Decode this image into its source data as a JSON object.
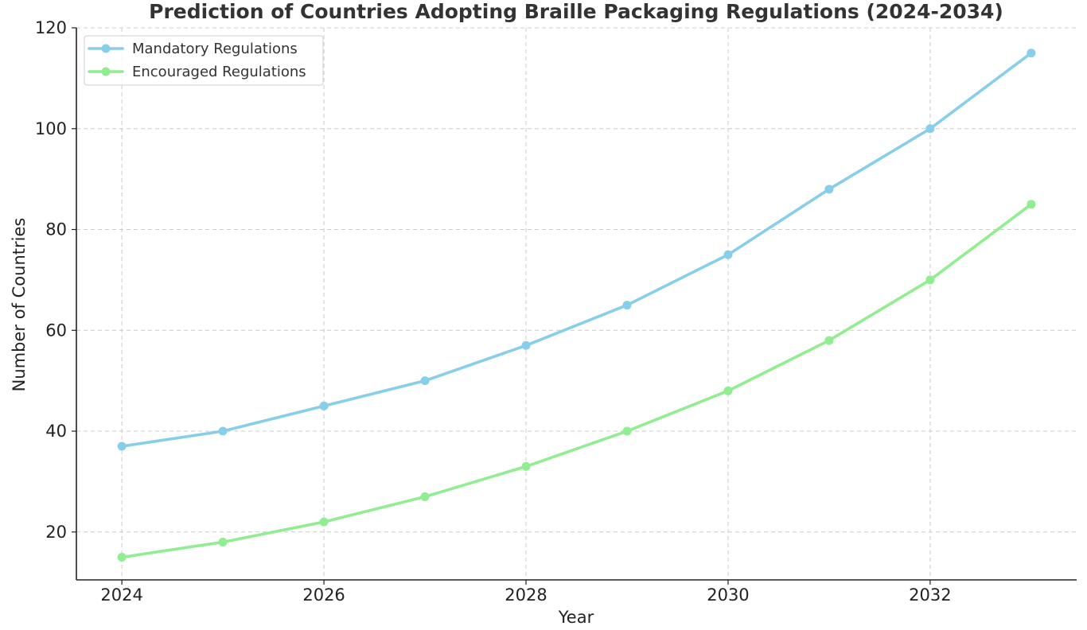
{
  "chart_data": {
    "type": "line",
    "title": "Prediction of Countries Adopting Braille Packaging Regulations (2024-2034)",
    "xlabel": "Year",
    "ylabel": "Number of Countries",
    "x": [
      2024,
      2025,
      2026,
      2027,
      2028,
      2029,
      2030,
      2031,
      2032,
      2033
    ],
    "xlim": [
      2023.55,
      2033.45
    ],
    "ylim": [
      10.5,
      120
    ],
    "x_ticks": [
      2024,
      2026,
      2028,
      2030,
      2032
    ],
    "y_ticks": [
      20,
      40,
      60,
      80,
      100,
      120
    ],
    "grid": true,
    "legend_position": "top-left",
    "series": [
      {
        "name": "Mandatory Regulations",
        "color": "#87CEEB",
        "values": [
          37,
          40,
          45,
          50,
          57,
          65,
          75,
          88,
          100,
          115
        ]
      },
      {
        "name": "Encouraged Regulations",
        "color": "#90EE90",
        "values": [
          15,
          18,
          22,
          27,
          33,
          40,
          48,
          58,
          70,
          85
        ]
      }
    ]
  }
}
